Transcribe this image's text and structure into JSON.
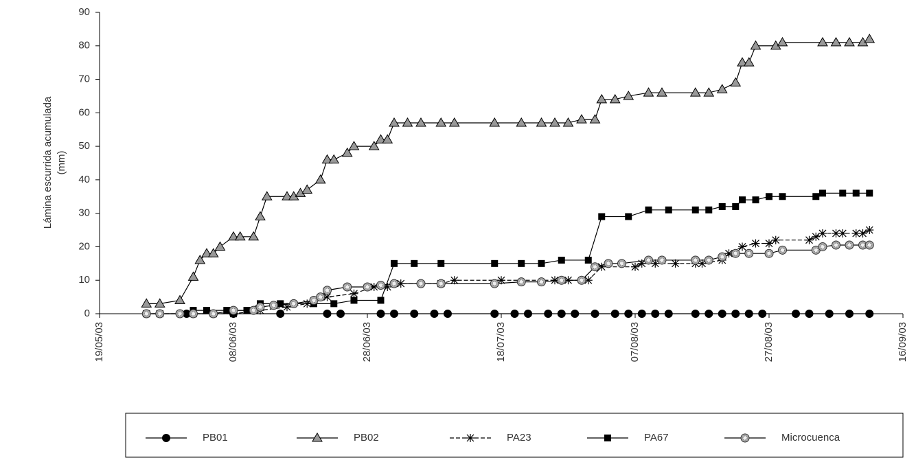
{
  "chart_data": {
    "type": "line",
    "ylabel": [
      "Lámina escurrida acumulada",
      "(mm)"
    ],
    "xlim": [
      "19/05/03",
      "16/09/03"
    ],
    "xticks": [
      "19/05/03",
      "08/06/03",
      "28/06/03",
      "18/07/03",
      "07/08/03",
      "27/08/03",
      "16/09/03"
    ],
    "ylim": [
      0,
      90
    ],
    "yticks": [
      0,
      10,
      20,
      30,
      40,
      50,
      60,
      70,
      80,
      90
    ],
    "series": [
      {
        "name": "PB01",
        "color": "#000000",
        "marker": "circle",
        "dash": false,
        "x": [
          "26/05/03",
          "01/06/03",
          "08/06/03",
          "15/06/03",
          "22/06/03",
          "24/06/03",
          "30/06/03",
          "02/07/03",
          "05/07/03",
          "08/07/03",
          "10/07/03",
          "17/07/03",
          "20/07/03",
          "22/07/03",
          "25/07/03",
          "27/07/03",
          "29/07/03",
          "01/08/03",
          "04/08/03",
          "06/08/03",
          "08/08/03",
          "10/08/03",
          "12/08/03",
          "16/08/03",
          "18/08/03",
          "20/08/03",
          "22/08/03",
          "24/08/03",
          "26/08/03",
          "31/08/03",
          "02/09/03",
          "05/09/03",
          "08/09/03",
          "11/09/03"
        ],
        "values": [
          0,
          0,
          0,
          0,
          0,
          0,
          0,
          0,
          0,
          0,
          0,
          0,
          0,
          0,
          0,
          0,
          0,
          0,
          0,
          0,
          0,
          0,
          0,
          0,
          0,
          0,
          0,
          0,
          0,
          0,
          0,
          0,
          0,
          0
        ]
      },
      {
        "name": "PB02",
        "color": "#999999",
        "marker": "triangle",
        "dash": false,
        "x": [
          "26/05/03",
          "28/05/03",
          "31/05/03",
          "02/06/03",
          "03/06/03",
          "04/06/03",
          "05/06/03",
          "06/06/03",
          "08/06/03",
          "09/06/03",
          "11/06/03",
          "12/06/03",
          "13/06/03",
          "16/06/03",
          "17/06/03",
          "18/06/03",
          "19/06/03",
          "21/06/03",
          "22/06/03",
          "23/06/03",
          "25/06/03",
          "26/06/03",
          "29/06/03",
          "30/06/03",
          "01/07/03",
          "02/07/03",
          "04/07/03",
          "06/07/03",
          "09/07/03",
          "11/07/03",
          "17/07/03",
          "21/07/03",
          "24/07/03",
          "26/07/03",
          "28/07/03",
          "30/07/03",
          "01/08/03",
          "02/08/03",
          "04/08/03",
          "06/08/03",
          "09/08/03",
          "11/08/03",
          "16/08/03",
          "18/08/03",
          "20/08/03",
          "22/08/03",
          "23/08/03",
          "24/08/03",
          "25/08/03",
          "28/08/03",
          "29/08/03",
          "04/09/03",
          "06/09/03",
          "08/09/03",
          "10/09/03",
          "11/09/03"
        ],
        "values": [
          3,
          3,
          4,
          11,
          16,
          18,
          18,
          20,
          23,
          23,
          23,
          29,
          35,
          35,
          35,
          36,
          37,
          40,
          46,
          46,
          48,
          50,
          50,
          52,
          52,
          57,
          57,
          57,
          57,
          57,
          57,
          57,
          57,
          57,
          57,
          58,
          58,
          64,
          64,
          65,
          66,
          66,
          66,
          66,
          67,
          69,
          75,
          75,
          80,
          80,
          81,
          81,
          81,
          81,
          81,
          82
        ]
      },
      {
        "name": "PA23",
        "color": "#000000",
        "marker": "asterisk",
        "dash": true,
        "x": [
          "26/05/03",
          "28/05/03",
          "02/06/03",
          "05/06/03",
          "08/06/03",
          "12/06/03",
          "16/06/03",
          "19/06/03",
          "22/06/03",
          "26/06/03",
          "29/06/03",
          "01/07/03",
          "03/07/03",
          "09/07/03",
          "11/07/03",
          "18/07/03",
          "26/07/03",
          "28/07/03",
          "31/07/03",
          "02/08/03",
          "07/08/03",
          "08/08/03",
          "10/08/03",
          "13/08/03",
          "16/08/03",
          "17/08/03",
          "20/08/03",
          "21/08/03",
          "23/08/03",
          "25/08/03",
          "27/08/03",
          "28/08/03",
          "02/09/03",
          "03/09/03",
          "04/09/03",
          "06/09/03",
          "07/09/03",
          "09/09/03",
          "10/09/03",
          "11/09/03"
        ],
        "values": [
          0,
          0,
          0,
          0,
          0,
          1,
          2,
          3,
          5,
          6,
          8,
          8,
          9,
          9,
          10,
          10,
          10,
          10,
          10,
          14,
          14,
          15,
          15,
          15,
          15,
          15,
          16,
          18,
          20,
          21,
          21,
          22,
          22,
          23,
          24,
          24,
          24,
          24,
          24,
          25
        ]
      },
      {
        "name": "PA67",
        "color": "#000000",
        "marker": "square",
        "dash": false,
        "x": [
          "02/06/03",
          "04/06/03",
          "07/06/03",
          "10/06/03",
          "12/06/03",
          "15/06/03",
          "20/06/03",
          "23/06/03",
          "26/06/03",
          "30/06/03",
          "02/07/03",
          "05/07/03",
          "09/07/03",
          "17/07/03",
          "21/07/03",
          "24/07/03",
          "27/07/03",
          "31/07/03",
          "02/08/03",
          "06/08/03",
          "09/08/03",
          "12/08/03",
          "16/08/03",
          "18/08/03",
          "20/08/03",
          "22/08/03",
          "23/08/03",
          "25/08/03",
          "27/08/03",
          "29/08/03",
          "03/09/03",
          "04/09/03",
          "07/09/03",
          "09/09/03",
          "11/09/03"
        ],
        "values": [
          1,
          1,
          1,
          1,
          3,
          3,
          3,
          3,
          4,
          4,
          15,
          15,
          15,
          15,
          15,
          15,
          16,
          16,
          29,
          29,
          31,
          31,
          31,
          31,
          32,
          32,
          34,
          34,
          35,
          35,
          35,
          36,
          36,
          36,
          36
        ]
      },
      {
        "name": "Microcuenca",
        "color": "#aaaaaa",
        "marker": "ring",
        "dash": false,
        "x": [
          "26/05/03",
          "28/05/03",
          "31/05/03",
          "02/06/03",
          "05/06/03",
          "08/06/03",
          "11/06/03",
          "12/06/03",
          "14/06/03",
          "17/06/03",
          "20/06/03",
          "21/06/03",
          "22/06/03",
          "25/06/03",
          "28/06/03",
          "30/06/03",
          "02/07/03",
          "06/07/03",
          "09/07/03",
          "17/07/03",
          "21/07/03",
          "24/07/03",
          "27/07/03",
          "30/07/03",
          "01/08/03",
          "03/08/03",
          "05/08/03",
          "09/08/03",
          "11/08/03",
          "16/08/03",
          "18/08/03",
          "20/08/03",
          "22/08/03",
          "24/08/03",
          "27/08/03",
          "29/08/03",
          "03/09/03",
          "04/09/03",
          "06/09/03",
          "08/09/03",
          "10/09/03",
          "11/09/03"
        ],
        "values": [
          0,
          0,
          0,
          0,
          0,
          1,
          1,
          2,
          2.5,
          3,
          4,
          5,
          7,
          8,
          8,
          8.5,
          9,
          9,
          9,
          9,
          9.5,
          9.5,
          10,
          10,
          14,
          15,
          15,
          16,
          16,
          16,
          16,
          17,
          18,
          18,
          18,
          19,
          19,
          20,
          20.5,
          20.5,
          20.5,
          20.5
        ]
      }
    ]
  }
}
